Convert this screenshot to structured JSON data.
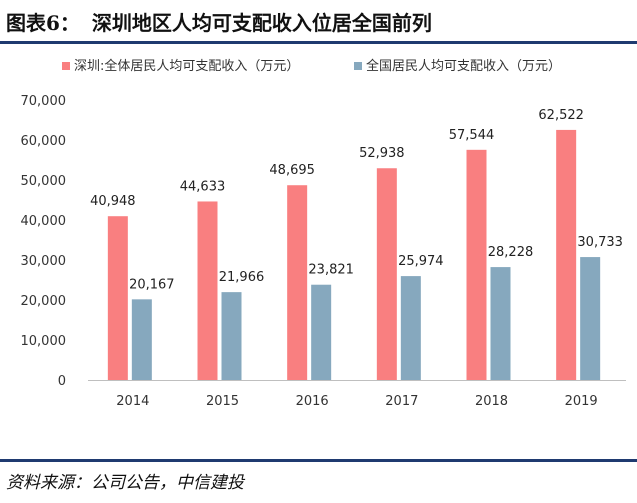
{
  "header": {
    "figure_label": "图表6：",
    "title": "深圳地区人均可支配收入位居全国前列"
  },
  "footer": {
    "source": "资料来源：公司公告，中信建投"
  },
  "colors": {
    "series_a": "#f97f80",
    "series_b": "#86a8be",
    "rule": "#1f3a70"
  },
  "chart_data": {
    "type": "bar",
    "title": "",
    "xlabel": "",
    "ylabel": "",
    "categories": [
      "2014",
      "2015",
      "2016",
      "2017",
      "2018",
      "2019"
    ],
    "series": [
      {
        "name": "深圳:全体居民人均可支配收入（万元）",
        "values": [
          40948,
          44633,
          48695,
          52938,
          57544,
          62522
        ],
        "labels": [
          "40,948",
          "44,633",
          "48,695",
          "52,938",
          "57,544",
          "62,522"
        ]
      },
      {
        "name": "全国居民人均可支配收入（万元）",
        "values": [
          20167,
          21966,
          23821,
          25974,
          28228,
          30733
        ],
        "labels": [
          "20,167",
          "21,966",
          "23,821",
          "25,974",
          "28,228",
          "30,733"
        ]
      }
    ],
    "ylim": [
      0,
      70000
    ],
    "yticks": [
      0,
      10000,
      20000,
      30000,
      40000,
      50000,
      60000,
      70000
    ],
    "ytick_labels": [
      "0",
      "10,000",
      "20,000",
      "30,000",
      "40,000",
      "50,000",
      "60,000",
      "70,000"
    ],
    "grid": false,
    "legend_position": "top"
  }
}
